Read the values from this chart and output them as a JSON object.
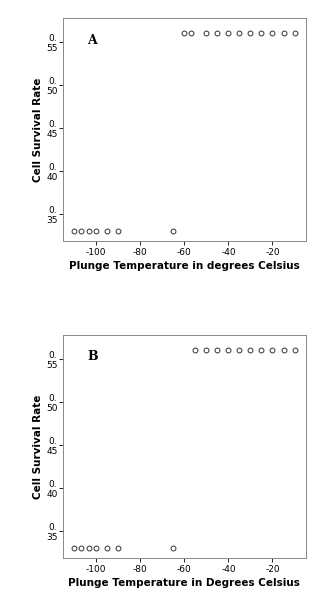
{
  "panel_A": {
    "low_x": [
      -110,
      -107,
      -103,
      -100,
      -95,
      -90,
      -65
    ],
    "low_y": [
      0.33,
      0.33,
      0.33,
      0.33,
      0.33,
      0.33,
      0.33
    ],
    "high_x": [
      -60,
      -57,
      -50,
      -45,
      -40,
      -35,
      -30,
      -25,
      -20,
      -15,
      -10
    ],
    "high_y": [
      0.56,
      0.56,
      0.56,
      0.56,
      0.56,
      0.56,
      0.56,
      0.56,
      0.56,
      0.56,
      0.56
    ],
    "label": "A",
    "xlabel": "Plunge Temperature in degrees Celsius",
    "ylabel": "Cell Survival Rate",
    "xlim": [
      -115,
      -5
    ],
    "ylim": [
      0.318,
      0.578
    ],
    "xticks": [
      -100,
      -80,
      -60,
      -40,
      -20
    ],
    "yticks": [
      0.35,
      0.4,
      0.45,
      0.5,
      0.55
    ]
  },
  "panel_B": {
    "low_x": [
      -110,
      -107,
      -103,
      -100,
      -95,
      -90,
      -65
    ],
    "low_y": [
      0.33,
      0.33,
      0.33,
      0.33,
      0.33,
      0.33,
      0.33
    ],
    "high_x": [
      -55,
      -50,
      -45,
      -40,
      -35,
      -30,
      -25,
      -20,
      -15,
      -10
    ],
    "high_y": [
      0.56,
      0.56,
      0.56,
      0.56,
      0.56,
      0.56,
      0.56,
      0.56,
      0.56,
      0.56
    ],
    "label": "B",
    "xlabel": "Plunge Temperature in Degrees Celsius",
    "ylabel": "Cell Survival Rate",
    "xlim": [
      -115,
      -5
    ],
    "ylim": [
      0.318,
      0.578
    ],
    "xticks": [
      -100,
      -80,
      -60,
      -40,
      -20
    ],
    "yticks": [
      0.35,
      0.4,
      0.45,
      0.5,
      0.55
    ]
  },
  "marker_style": "o",
  "marker_facecolor": "none",
  "marker_edgecolor": "#333333",
  "marker_size": 3.5,
  "marker_edgewidth": 0.7,
  "background_color": "#ffffff",
  "panel_bg": "#ffffff",
  "tick_fontsize": 6.5,
  "axis_label_fontsize": 7.5,
  "panel_label_fontsize": 9,
  "spine_color": "#888888",
  "spine_linewidth": 0.7
}
